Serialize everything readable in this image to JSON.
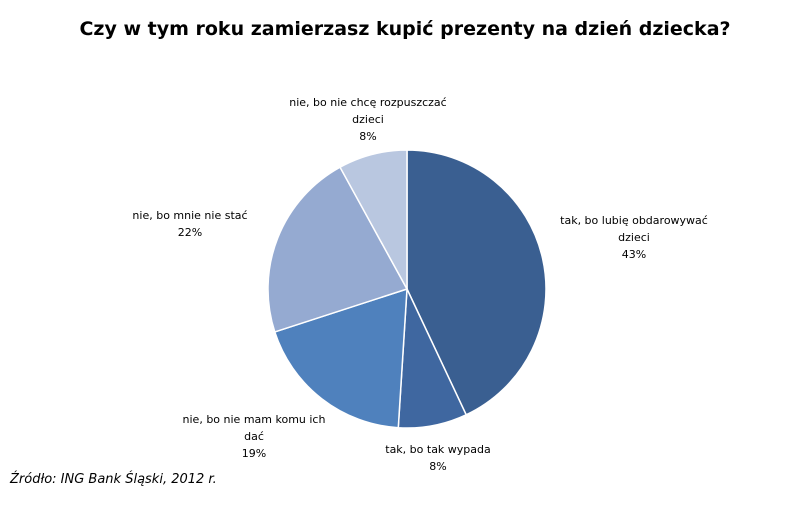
{
  "title": "Czy w tym roku zamierzasz kupić prezenty na dzień dziecka?",
  "source": "Źródło: ING Bank Śląski, 2012 r.",
  "chart_data": {
    "type": "pie",
    "title": "Czy w tym roku zamierzasz kupić prezenty na dzień dziecka?",
    "start_angle_deg": 0,
    "direction": "clockwise",
    "legend": "none",
    "slices": [
      {
        "label_lines": [
          "tak, bo lubię obdarowywać",
          "dzieci"
        ],
        "value": 43,
        "value_label": "43%",
        "color": "#3a5f91"
      },
      {
        "label_lines": [
          "tak, bo tak wypada"
        ],
        "value": 8,
        "value_label": "8%",
        "color": "#3f67a0"
      },
      {
        "label_lines": [
          "nie, bo nie mam  komu ich",
          "dać"
        ],
        "value": 19,
        "value_label": "19%",
        "color": "#4f81bd"
      },
      {
        "label_lines": [
          "nie, bo mnie nie stać"
        ],
        "value": 22,
        "value_label": "22%",
        "color": "#95aad1"
      },
      {
        "label_lines": [
          "nie, bo nie chcę rozpuszczać",
          "dzieci"
        ],
        "value": 8,
        "value_label": "8%",
        "color": "#b9c7e0"
      }
    ]
  }
}
